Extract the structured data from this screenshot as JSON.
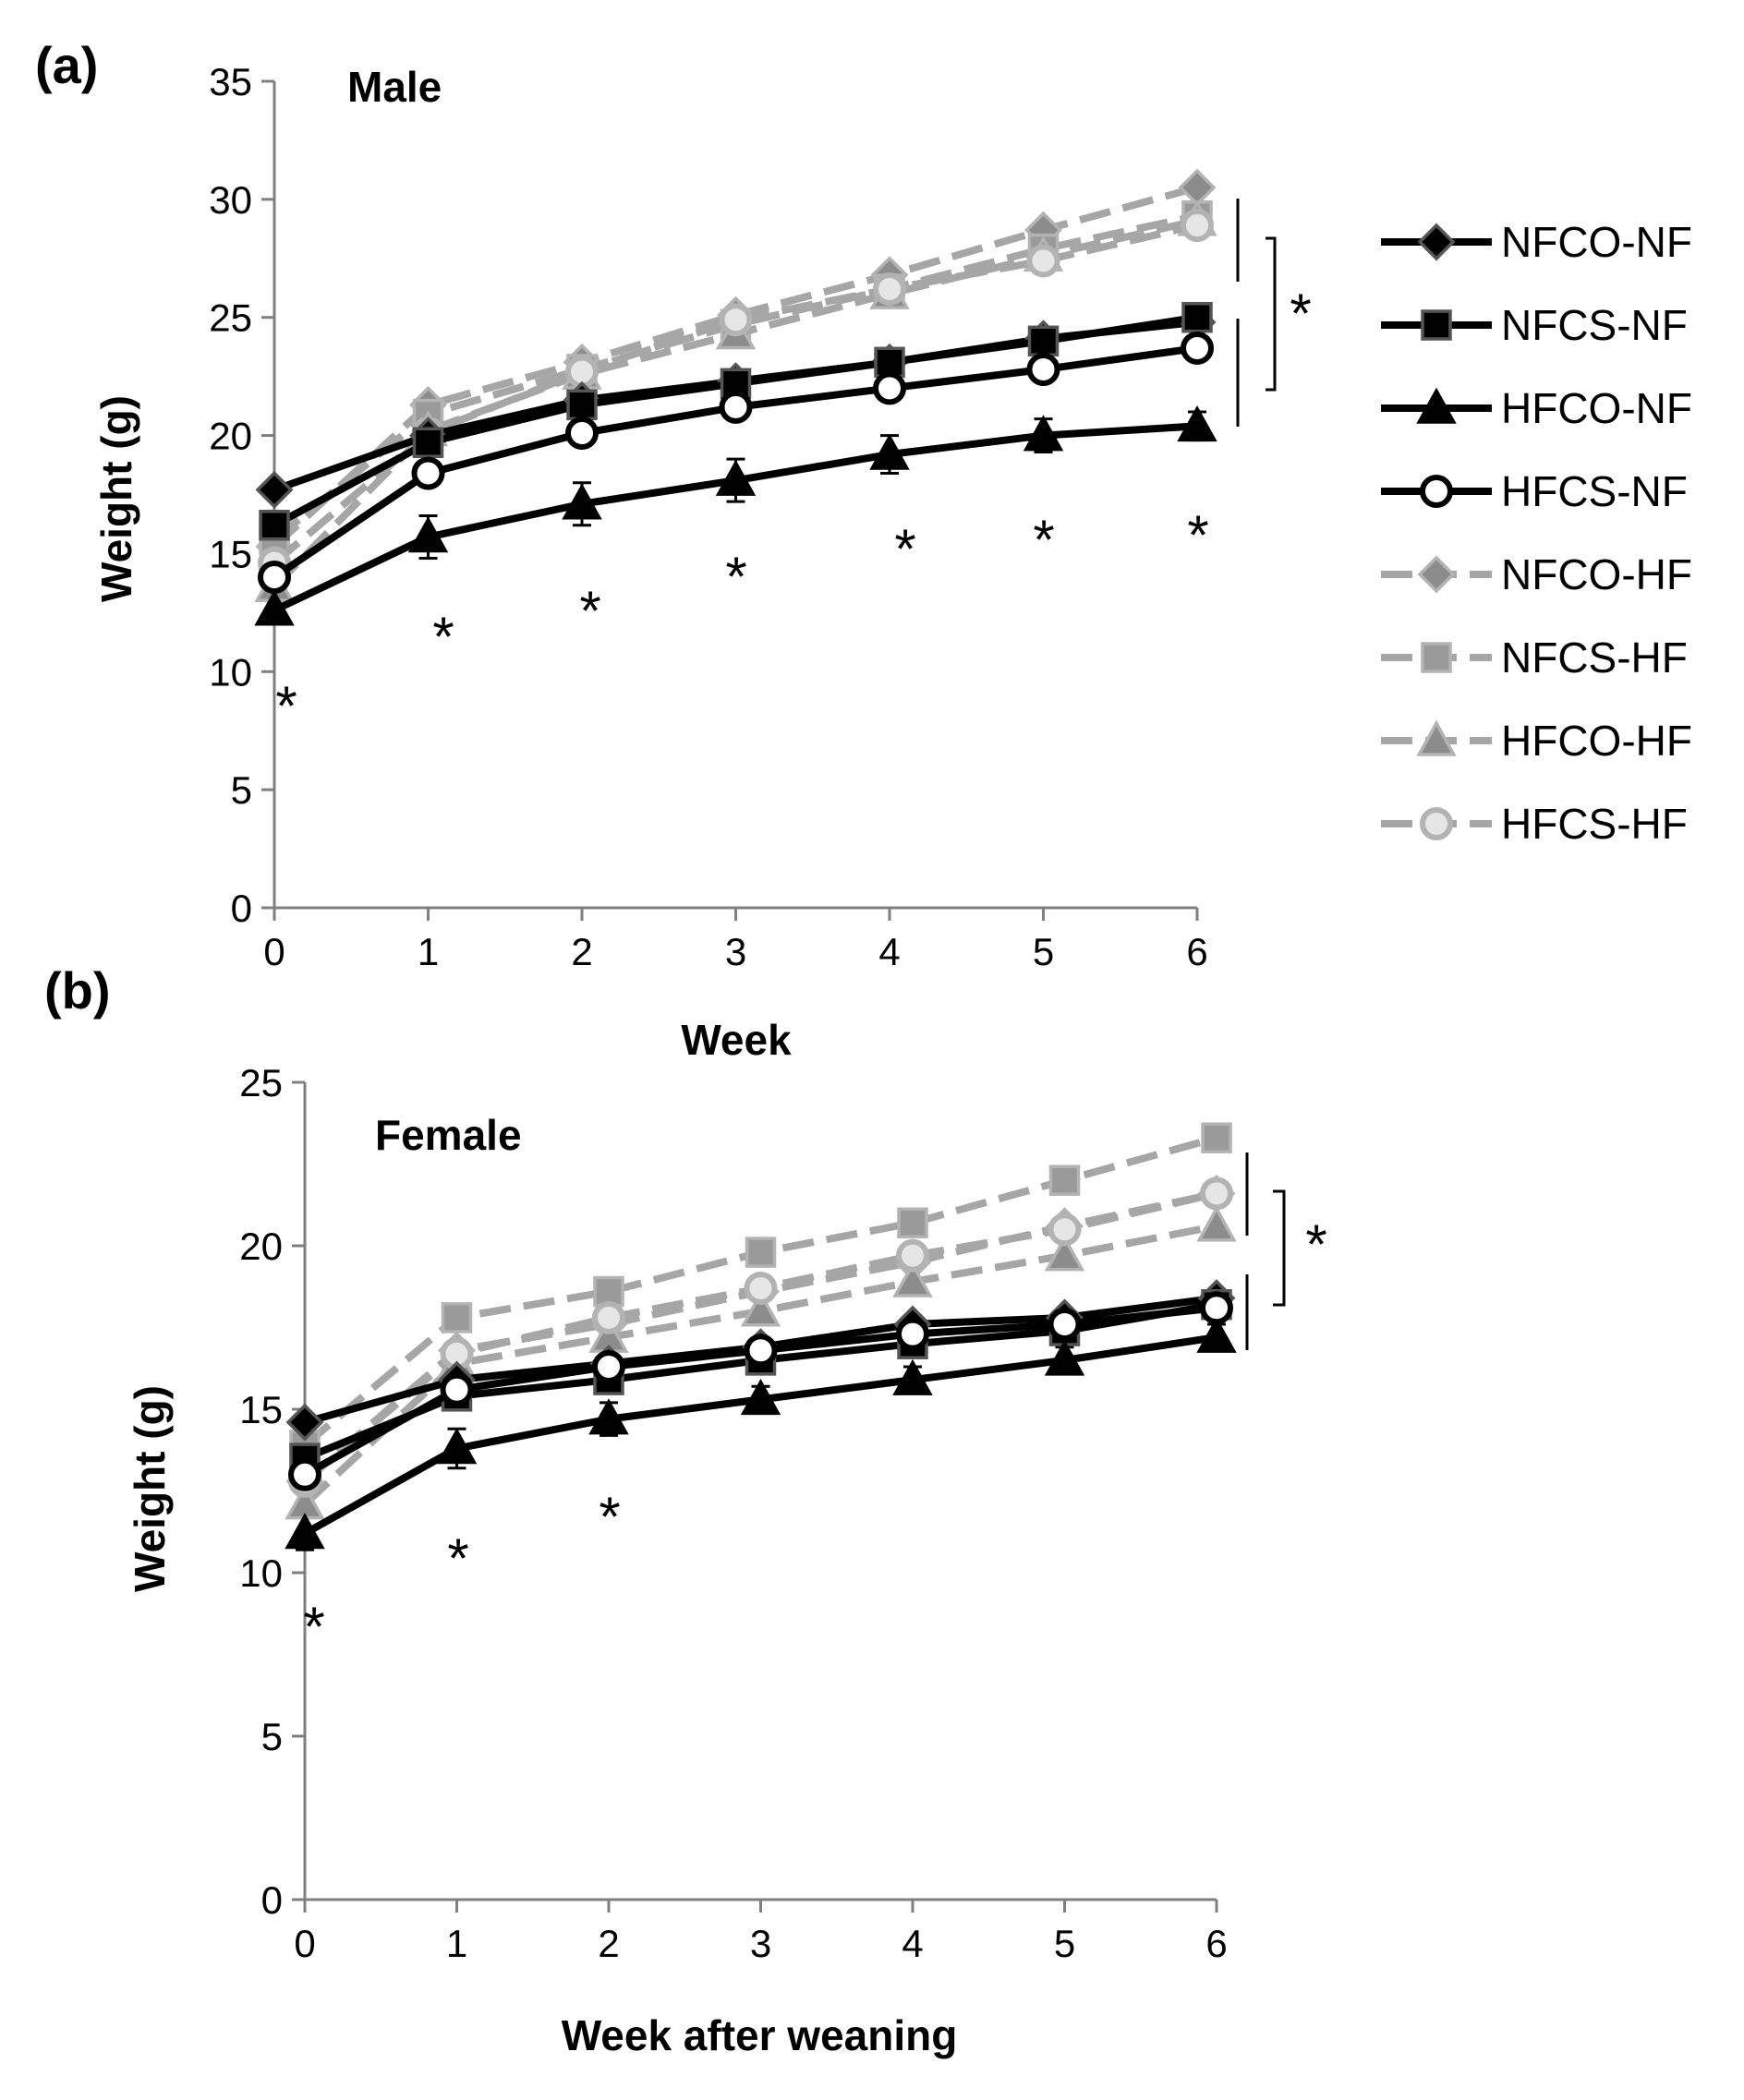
{
  "chart_data": [
    {
      "type": "line",
      "panel": "(a)",
      "title": "Male",
      "xlabel": "Week",
      "ylabel": "Weight (g)",
      "x": [
        0,
        1,
        2,
        3,
        4,
        5,
        6
      ],
      "x_tick_labels": [
        "0",
        "1",
        "2",
        "3",
        "4",
        "5",
        "6"
      ],
      "ylim": [
        0,
        35
      ],
      "y_ticks": [
        0,
        5,
        10,
        15,
        20,
        25,
        30,
        35
      ],
      "y_tick_labels": [
        "0",
        "5",
        "10",
        "15",
        "20",
        "25",
        "30",
        "35"
      ],
      "series": [
        {
          "name": "NFCO-NF",
          "values": [
            17.7,
            20.0,
            21.5,
            22.3,
            23.1,
            24.1,
            24.8
          ]
        },
        {
          "name": "NFCS-NF",
          "values": [
            16.2,
            19.7,
            21.3,
            22.2,
            23.1,
            24.0,
            25.0
          ]
        },
        {
          "name": "HFCO-NF",
          "values": [
            12.6,
            15.7,
            17.1,
            18.1,
            19.2,
            20.0,
            20.4
          ]
        },
        {
          "name": "HFCS-NF",
          "values": [
            14.0,
            18.4,
            20.1,
            21.2,
            22.0,
            22.8,
            23.7
          ]
        },
        {
          "name": "NFCO-HF",
          "values": [
            15.3,
            21.3,
            23.1,
            25.1,
            26.8,
            28.7,
            30.5
          ]
        },
        {
          "name": "NFCS-HF",
          "values": [
            15.6,
            20.9,
            22.8,
            24.7,
            26.2,
            27.9,
            29.3
          ]
        },
        {
          "name": "HFCO-HF",
          "values": [
            13.6,
            20.2,
            22.6,
            24.3,
            26.0,
            27.6,
            29.1
          ]
        },
        {
          "name": "HFCS-HF",
          "values": [
            14.6,
            20.1,
            22.7,
            24.9,
            26.2,
            27.4,
            28.9
          ]
        }
      ],
      "error_bars": {
        "series": "HFCO-NF",
        "values": [
          0.4,
          0.9,
          0.9,
          0.9,
          0.8,
          0.7,
          0.6
        ]
      },
      "significance": {
        "point_marks": [
          "*",
          "*",
          "*",
          "*",
          "*",
          "*",
          "*"
        ],
        "point_mark_x": [
          0,
          1,
          2,
          3,
          4,
          5,
          6
        ],
        "bracket_mark": "*"
      }
    },
    {
      "type": "line",
      "panel": "(b)",
      "title": "Female",
      "xlabel": "Week after weaning",
      "ylabel": "Weight (g)",
      "x": [
        0,
        1,
        2,
        3,
        4,
        5,
        6
      ],
      "x_tick_labels": [
        "0",
        "1",
        "2",
        "3",
        "4",
        "5",
        "6"
      ],
      "ylim": [
        0,
        25
      ],
      "y_ticks": [
        0,
        5,
        10,
        15,
        20,
        25
      ],
      "y_tick_labels": [
        "0",
        "5",
        "10",
        "15",
        "20",
        "25"
      ],
      "series": [
        {
          "name": "NFCO-NF",
          "values": [
            14.6,
            15.9,
            16.4,
            16.9,
            17.6,
            17.8,
            18.4
          ]
        },
        {
          "name": "NFCS-NF",
          "values": [
            13.5,
            15.4,
            15.9,
            16.5,
            17.0,
            17.4,
            18.2
          ]
        },
        {
          "name": "HFCO-NF",
          "values": [
            11.2,
            13.8,
            14.7,
            15.3,
            15.9,
            16.5,
            17.2
          ]
        },
        {
          "name": "HFCS-NF",
          "values": [
            13.0,
            15.6,
            16.3,
            16.8,
            17.3,
            17.6,
            18.1
          ]
        },
        {
          "name": "NFCO-HF",
          "values": [
            12.8,
            16.8,
            17.6,
            18.6,
            19.5,
            20.6,
            21.6
          ]
        },
        {
          "name": "NFCS-HF",
          "values": [
            13.9,
            17.8,
            18.6,
            19.8,
            20.7,
            22.0,
            23.3
          ]
        },
        {
          "name": "HFCO-HF",
          "values": [
            12.1,
            16.4,
            17.2,
            18.0,
            18.9,
            19.7,
            20.6
          ]
        },
        {
          "name": "HFCS-HF",
          "values": [
            12.8,
            16.7,
            17.8,
            18.7,
            19.7,
            20.5,
            21.6
          ]
        }
      ],
      "error_bars": {
        "series": "HFCO-NF",
        "values": [
          0.5,
          0.6,
          0.5,
          0.4,
          0.4,
          0.4,
          0.4
        ]
      },
      "significance": {
        "point_marks": [
          "*",
          "*",
          "*"
        ],
        "point_mark_x": [
          0,
          1,
          2
        ],
        "bracket_mark": "*"
      }
    }
  ],
  "legend": {
    "entries": [
      {
        "name": "NFCO-NF",
        "label": "NFCO-NF"
      },
      {
        "name": "NFCS-NF",
        "label": "NFCS-NF"
      },
      {
        "name": "HFCO-NF",
        "label": "HFCO-NF"
      },
      {
        "name": "HFCS-NF",
        "label": "HFCS-NF"
      },
      {
        "name": "NFCO-HF",
        "label": "NFCO-HF"
      },
      {
        "name": "NFCS-HF",
        "label": "NFCS-HF"
      },
      {
        "name": "HFCO-HF",
        "label": "HFCO-HF"
      },
      {
        "name": "HFCS-HF",
        "label": "HFCS-HF"
      }
    ]
  },
  "styles": {
    "NFCO-NF": {
      "color": "#000000",
      "marker": "diamond",
      "dash": false,
      "fill": "#000000",
      "stroke": "#555555"
    },
    "NFCS-NF": {
      "color": "#000000",
      "marker": "square",
      "dash": false,
      "fill": "#000000",
      "stroke": "#555555"
    },
    "HFCO-NF": {
      "color": "#000000",
      "marker": "triangle",
      "dash": false,
      "fill": "#000000",
      "stroke": "#000000"
    },
    "HFCS-NF": {
      "color": "#000000",
      "marker": "circle",
      "dash": false,
      "fill": "#ffffff",
      "stroke": "#000000"
    },
    "NFCO-HF": {
      "color": "#a6a6a6",
      "marker": "diamond",
      "dash": true,
      "fill": "#8c8c8c",
      "stroke": "#b3b3b3"
    },
    "NFCS-HF": {
      "color": "#a6a6a6",
      "marker": "square",
      "dash": true,
      "fill": "#9a9a9a",
      "stroke": "#b3b3b3"
    },
    "HFCO-HF": {
      "color": "#a6a6a6",
      "marker": "triangle",
      "dash": true,
      "fill": "#8c8c8c",
      "stroke": "#b3b3b3"
    },
    "HFCS-HF": {
      "color": "#a6a6a6",
      "marker": "circle",
      "dash": true,
      "fill": "#e6e6e6",
      "stroke": "#b3b3b3"
    }
  }
}
